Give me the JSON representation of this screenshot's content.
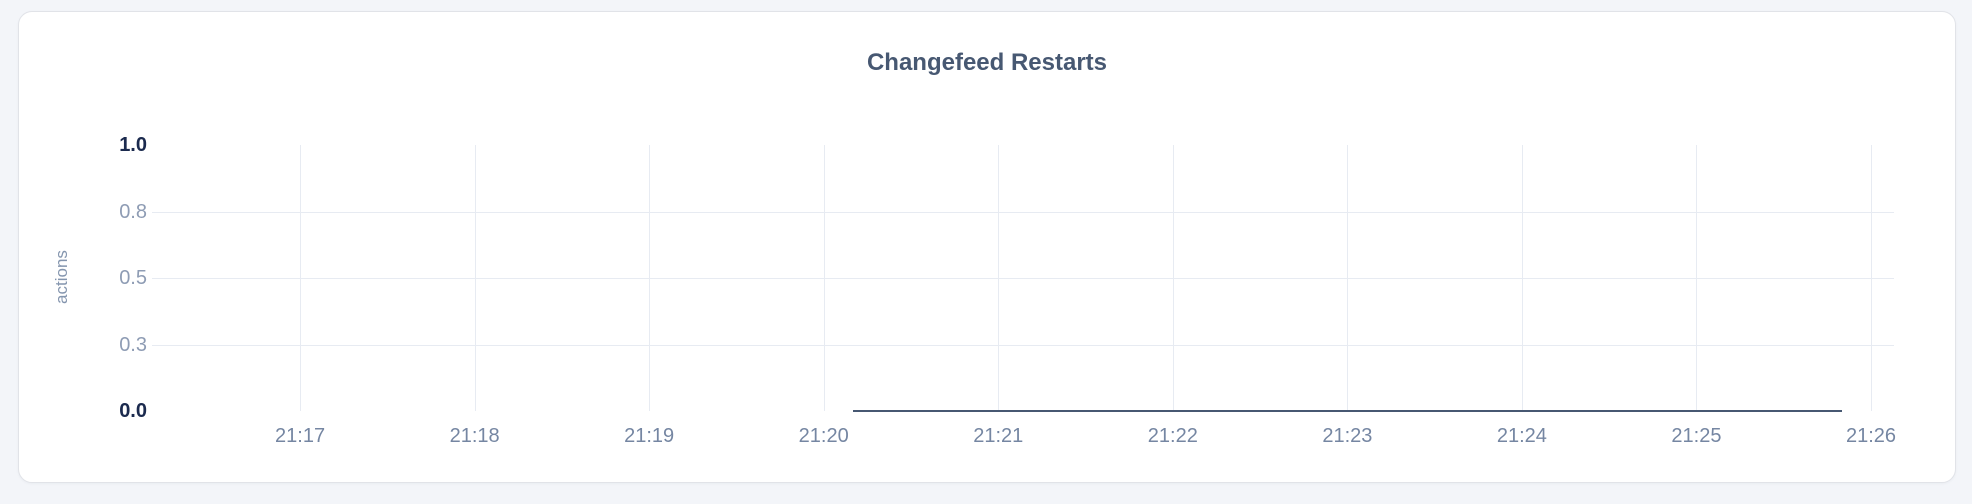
{
  "page": {
    "background_color": "#f3f5f9"
  },
  "card": {
    "background_color": "#ffffff",
    "border_color": "#e1e3e8"
  },
  "chart_data": {
    "type": "line",
    "title": "Changefeed Restarts",
    "xlabel": "",
    "ylabel": "actions",
    "ylim": [
      0,
      1
    ],
    "grid": true,
    "legend": false,
    "x_ticks": [
      "21:17",
      "21:18",
      "21:19",
      "21:20",
      "21:21",
      "21:22",
      "21:23",
      "21:24",
      "21:25",
      "21:26"
    ],
    "y_ticks": [
      {
        "label": "1.0",
        "value": 1.0,
        "bold": true
      },
      {
        "label": "0.8",
        "value": 0.75,
        "bold": false
      },
      {
        "label": "0.5",
        "value": 0.5,
        "bold": false
      },
      {
        "label": "0.3",
        "value": 0.25,
        "bold": false
      },
      {
        "label": "0.0",
        "value": 0.0,
        "bold": true
      }
    ],
    "series": [
      {
        "name": "changefeed-restarts",
        "color": "#475872",
        "points": [
          {
            "time": "21:20:10",
            "value": 0
          },
          {
            "time": "21:21:00",
            "value": 0
          },
          {
            "time": "21:22:00",
            "value": 0
          },
          {
            "time": "21:23:00",
            "value": 0
          },
          {
            "time": "21:24:00",
            "value": 0
          },
          {
            "time": "21:25:00",
            "value": 0
          },
          {
            "time": "21:25:50",
            "value": 0
          }
        ]
      }
    ],
    "layout": {
      "x_first_tick_pct": 8.5,
      "x_tick_step_pct": 10.02,
      "series_start_pct": 40.24,
      "series_end_pct": 97.0,
      "gridline_color": "#e7ebf2",
      "title_color": "#475872",
      "ylabel_color": "#8495ae",
      "ytick_color": "#8e9cb4",
      "xtick_color": "#7586a2",
      "bold_label_color": "#1b2a4e"
    }
  }
}
